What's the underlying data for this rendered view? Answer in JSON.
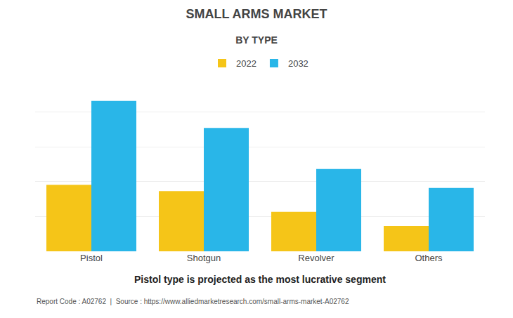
{
  "chart_data": {
    "type": "bar",
    "title": "SMALL ARMS MARKET",
    "subtitle": "BY TYPE",
    "categories": [
      "Pistol",
      "Shotgun",
      "Revolver",
      "Others"
    ],
    "series": [
      {
        "name": "2022",
        "color": "#F5C518",
        "values": [
          4.2,
          3.8,
          2.5,
          1.6
        ]
      },
      {
        "name": "2032",
        "color": "#29B6E8",
        "values": [
          9.5,
          7.8,
          5.2,
          4.0
        ]
      }
    ],
    "ylim": [
      0,
      11
    ],
    "yticks": [
      0,
      2.2,
      4.4,
      6.6,
      8.8,
      11
    ],
    "grid": true,
    "tick_labels": "x",
    "legend": "top",
    "annotations": [
      "Pistol type is projected as the most lucrative segment",
      "Report Code : A02762  |  Source : https://www.alliedmarketresearch.com/small-arms-market-A02762"
    ]
  }
}
